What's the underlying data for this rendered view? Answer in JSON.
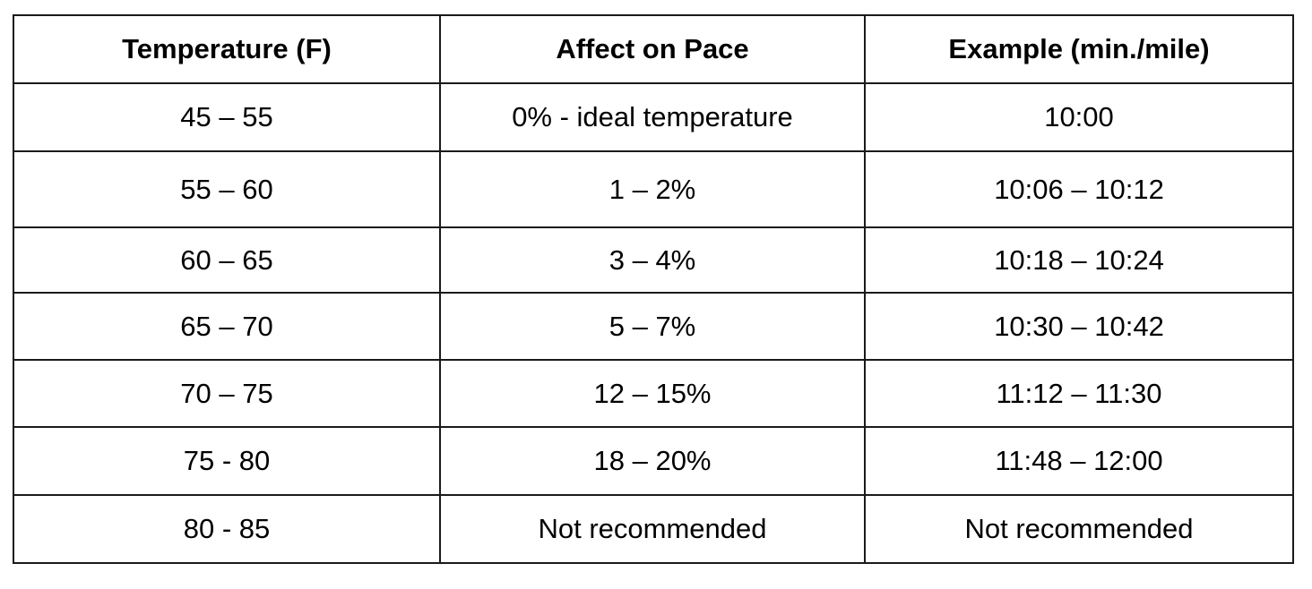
{
  "table": {
    "headers": [
      "Temperature (F)",
      "Affect on Pace",
      "Example (min./mile)"
    ],
    "rows": [
      [
        "45 – 55",
        "0% - ideal temperature",
        "10:00"
      ],
      [
        "55 – 60",
        "1 – 2%",
        "10:06 – 10:12"
      ],
      [
        "60 – 65",
        "3 – 4%",
        "10:18 – 10:24"
      ],
      [
        "65 – 70",
        "5 – 7%",
        "10:30 – 10:42"
      ],
      [
        "70 – 75",
        "12 – 15%",
        "11:12 – 11:30"
      ],
      [
        "75 - 80",
        "18 – 20%",
        "11:48 – 12:00"
      ],
      [
        "80 - 85",
        "Not recommended",
        "Not recommended"
      ]
    ]
  }
}
